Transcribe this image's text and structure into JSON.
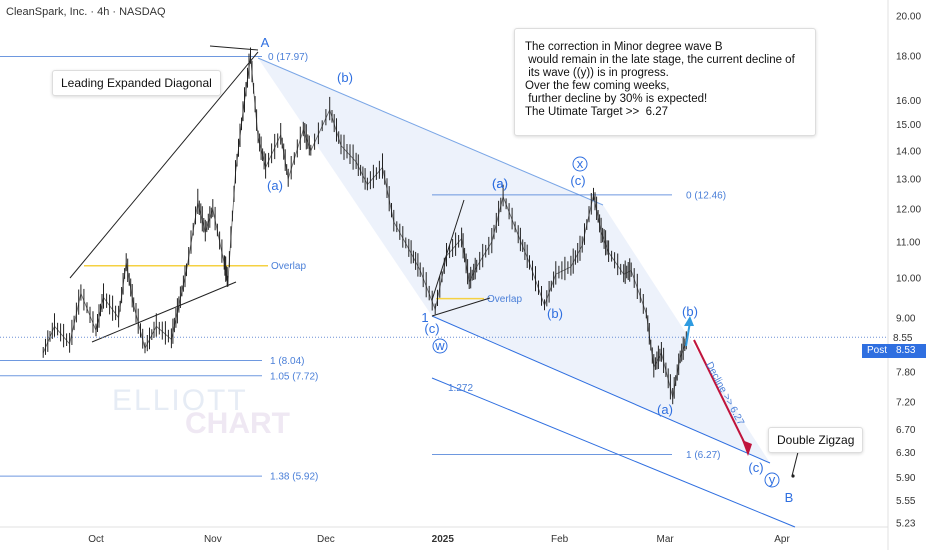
{
  "header": {
    "title": "CleanSpark, Inc. · 4h · NASDAQ"
  },
  "annotation": {
    "lines": [
      "The correction in Minor degree wave B",
      " would remain in the late stage, the current decline of",
      " its wave ((y)) is in progress.",
      "",
      "Over the few coming weeks,",
      " further decline by 30% is expected!",
      "",
      "The Utimate Target >>  6.27"
    ]
  },
  "callouts": {
    "leading": "Leading Expanded Diagonal",
    "double_zigzag": "Double Zigzag"
  },
  "watermark": {
    "line1": "ELLIOTT",
    "line2": "CHART"
  },
  "price_tag": {
    "current": "8.55",
    "post_label": "Post",
    "post_value": "8.53"
  },
  "chart_data": {
    "type": "line",
    "y_scale": "log",
    "ylim": [
      5.23,
      20.0
    ],
    "y_ticks": [
      "20.00",
      "18.00",
      "16.00",
      "15.00",
      "14.00",
      "13.00",
      "12.00",
      "11.00",
      "10.00",
      "9.00",
      "8.55",
      "7.80",
      "7.20",
      "6.70",
      "6.30",
      "5.90",
      "5.55",
      "5.23"
    ],
    "x_ticks": [
      "Oct",
      "Nov",
      "Dec",
      "2025",
      "Feb",
      "Mar",
      "Apr"
    ],
    "price_series": [
      {
        "date": "2024-09-17",
        "price": 8.2
      },
      {
        "date": "2024-09-20",
        "price": 8.8
      },
      {
        "date": "2024-09-24",
        "price": 8.4
      },
      {
        "date": "2024-09-27",
        "price": 9.6
      },
      {
        "date": "2024-10-01",
        "price": 8.7
      },
      {
        "date": "2024-10-03",
        "price": 9.5
      },
      {
        "date": "2024-10-07",
        "price": 9.0
      },
      {
        "date": "2024-10-09",
        "price": 10.4
      },
      {
        "date": "2024-10-11",
        "price": 9.3
      },
      {
        "date": "2024-10-14",
        "price": 8.3
      },
      {
        "date": "2024-10-17",
        "price": 8.8
      },
      {
        "date": "2024-10-21",
        "price": 8.5
      },
      {
        "date": "2024-10-23",
        "price": 9.3
      },
      {
        "date": "2024-10-25",
        "price": 10.2
      },
      {
        "date": "2024-10-28",
        "price": 12.2
      },
      {
        "date": "2024-10-30",
        "price": 11.3
      },
      {
        "date": "2024-11-01",
        "price": 12.0
      },
      {
        "date": "2024-11-04",
        "price": 10.4
      },
      {
        "date": "2024-11-05",
        "price": 9.9
      },
      {
        "date": "2024-11-07",
        "price": 13.2
      },
      {
        "date": "2024-11-09",
        "price": 15.5
      },
      {
        "date": "2024-11-11",
        "price": 17.97
      },
      {
        "date": "2024-11-13",
        "price": 14.5
      },
      {
        "date": "2024-11-15",
        "price": 13.4
      },
      {
        "date": "2024-11-19",
        "price": 14.6
      },
      {
        "date": "2024-11-21",
        "price": 13.0
      },
      {
        "date": "2024-11-25",
        "price": 14.8
      },
      {
        "date": "2024-11-27",
        "price": 14.0
      },
      {
        "date": "2024-12-02",
        "price": 15.6
      },
      {
        "date": "2024-12-05",
        "price": 14.2
      },
      {
        "date": "2024-12-09",
        "price": 13.6
      },
      {
        "date": "2024-12-12",
        "price": 12.8
      },
      {
        "date": "2024-12-16",
        "price": 13.4
      },
      {
        "date": "2024-12-19",
        "price": 11.6
      },
      {
        "date": "2024-12-23",
        "price": 10.8
      },
      {
        "date": "2024-12-26",
        "price": 10.2
      },
      {
        "date": "2024-12-30",
        "price": 9.2
      },
      {
        "date": "2025-01-02",
        "price": 10.6
      },
      {
        "date": "2025-01-06",
        "price": 11.1
      },
      {
        "date": "2025-01-08",
        "price": 9.9
      },
      {
        "date": "2025-01-10",
        "price": 10.3
      },
      {
        "date": "2025-01-14",
        "price": 11.0
      },
      {
        "date": "2025-01-17",
        "price": 12.4
      },
      {
        "date": "2025-01-21",
        "price": 11.2
      },
      {
        "date": "2025-01-24",
        "price": 10.4
      },
      {
        "date": "2025-01-28",
        "price": 9.3
      },
      {
        "date": "2025-01-31",
        "price": 10.1
      },
      {
        "date": "2025-02-04",
        "price": 10.3
      },
      {
        "date": "2025-02-07",
        "price": 10.9
      },
      {
        "date": "2025-02-10",
        "price": 12.46
      },
      {
        "date": "2025-02-12",
        "price": 11.3
      },
      {
        "date": "2025-02-14",
        "price": 10.7
      },
      {
        "date": "2025-02-18",
        "price": 10.1
      },
      {
        "date": "2025-02-20",
        "price": 10.2
      },
      {
        "date": "2025-02-24",
        "price": 9.1
      },
      {
        "date": "2025-02-26",
        "price": 7.9
      },
      {
        "date": "2025-02-28",
        "price": 8.2
      },
      {
        "date": "2025-03-03",
        "price": 7.3
      },
      {
        "date": "2025-03-05",
        "price": 8.1
      },
      {
        "date": "2025-03-07",
        "price": 8.55
      }
    ],
    "fib_levels": [
      {
        "label": "0 (17.97)",
        "price": 17.97
      },
      {
        "label": "0 (12.46)",
        "price": 12.46
      },
      {
        "label": "1 (8.04)",
        "price": 8.04
      },
      {
        "label": "1.05 (7.72)",
        "price": 7.72
      },
      {
        "label": "1.272",
        "price": 7.2
      },
      {
        "label": "1 (6.27)",
        "price": 6.27
      },
      {
        "label": "1.38 (5.92)",
        "price": 5.92
      }
    ],
    "overlap_levels": [
      {
        "label": "Overlap",
        "price": 10.33
      },
      {
        "label": "Overlap",
        "price": 9.47
      }
    ],
    "wave_labels": [
      "A",
      "(a)",
      "(b)",
      "(c)",
      "(b)",
      "(a)",
      "(c)",
      "x",
      "(a)",
      "(b)",
      "(c)",
      "1",
      "w",
      "(c)",
      "(b)",
      "y",
      "B"
    ],
    "projection_label": "Decline >> 6.27",
    "target": 6.27,
    "current_price": 8.55,
    "colors": {
      "channel_fill": "#dfe8f7",
      "fib": "#4a7fd8",
      "overlap": "#f5d142",
      "wave": "#2f6fe0",
      "projection": "#c0143c",
      "price": "#222222"
    }
  }
}
